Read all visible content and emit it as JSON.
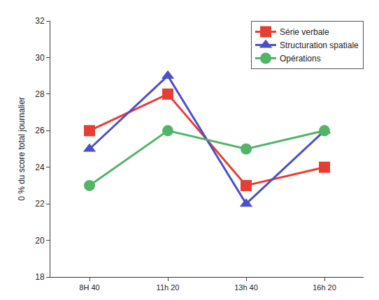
{
  "chart_data": {
    "type": "line",
    "y_label": "0 % du score total journalier",
    "categories": [
      "8H 40",
      "11h 20",
      "13h 40",
      "16h 20"
    ],
    "series": [
      {
        "name": "Série verbale",
        "color": "#e53f35",
        "marker": "square",
        "values": [
          26,
          28,
          23,
          24
        ]
      },
      {
        "name": "Structuration spatiale",
        "color": "#4a50c8",
        "marker": "triangle-up",
        "values": [
          25,
          29,
          22,
          26
        ]
      },
      {
        "name": "Opérations",
        "color": "#52b466",
        "marker": "circle",
        "values": [
          23,
          26,
          25,
          26
        ]
      }
    ],
    "ylim": [
      18,
      32
    ],
    "yticks": [
      18,
      20,
      22,
      24,
      26,
      28,
      30,
      32
    ],
    "grid": false,
    "legend": "top-right"
  }
}
